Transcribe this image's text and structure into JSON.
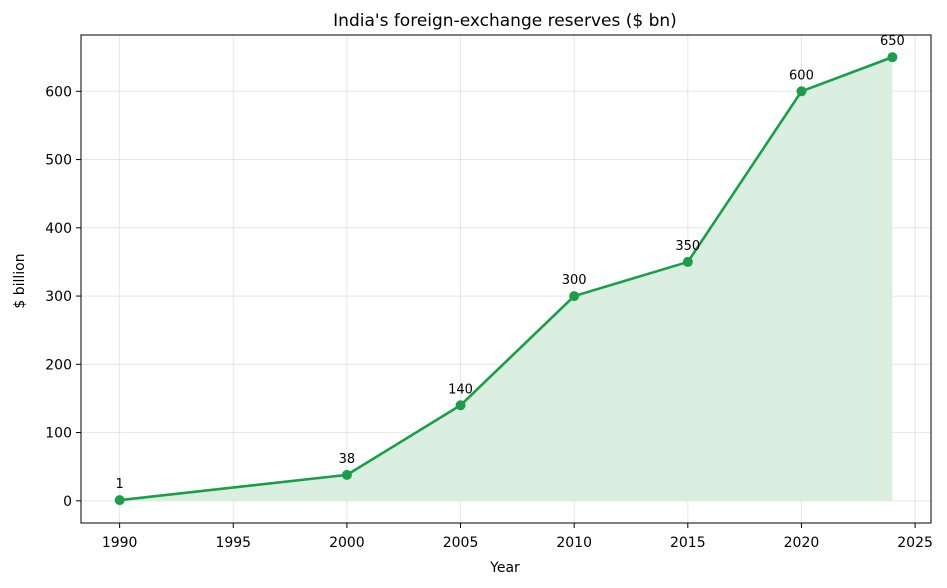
{
  "chart_data": {
    "type": "area",
    "title": "India's foreign-exchange reserves ($ bn)",
    "xlabel": "Year",
    "ylabel": "$ billion",
    "x": [
      1990,
      2000,
      2005,
      2010,
      2015,
      2020,
      2024
    ],
    "series": [
      {
        "values": [
          1,
          38,
          140,
          300,
          350,
          600,
          650
        ]
      }
    ],
    "data_labels": [
      "1",
      "38",
      "140",
      "300",
      "350",
      "600",
      "650"
    ],
    "xlim": [
      1988.3,
      2025.7
    ],
    "ylim": [
      -32.5,
      682.5
    ],
    "xticks": [
      1990,
      1995,
      2000,
      2005,
      2010,
      2015,
      2020,
      2025
    ],
    "xtick_labels": [
      "1990",
      "1995",
      "2000",
      "2005",
      "2010",
      "2015",
      "2020",
      "2025"
    ],
    "yticks": [
      0,
      100,
      200,
      300,
      400,
      500,
      600
    ],
    "ytick_labels": [
      "0",
      "100",
      "200",
      "300",
      "400",
      "500",
      "600"
    ],
    "grid": true,
    "colors": {
      "line": "#1a9e4a",
      "fill": "#dbefe0"
    }
  }
}
